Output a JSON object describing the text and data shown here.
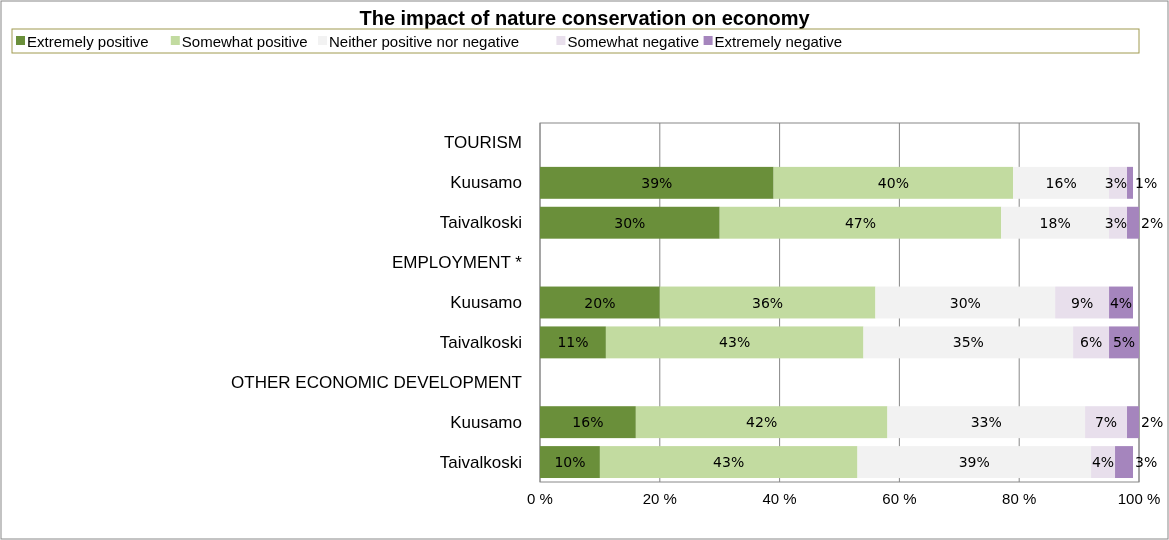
{
  "chart_data": {
    "type": "bar",
    "orientation": "horizontal",
    "stacked": true,
    "title": "The impact of nature conservation on economy",
    "categories": [
      "TOURISM",
      "Kuusamo",
      "Taivalkoski",
      "EMPLOYMENT *",
      "Kuusamo",
      "Taivalkoski",
      "OTHER ECONOMIC DEVELOPMENT",
      "Kuusamo",
      "Taivalkoski"
    ],
    "series": [
      {
        "name": "Extremely positive",
        "color": "#6a8f3a",
        "values": [
          null,
          39,
          30,
          null,
          20,
          11,
          null,
          16,
          10
        ],
        "value_labels": [
          null,
          "39%",
          "30%",
          null,
          "20%",
          "11%",
          null,
          "16%",
          "10%"
        ]
      },
      {
        "name": "Somewhat positive",
        "color": "#c2dba0",
        "values": [
          null,
          40,
          47,
          null,
          36,
          43,
          null,
          42,
          43
        ],
        "value_labels": [
          null,
          "40%",
          "47%",
          null,
          "36%",
          "43%",
          null,
          "42%",
          "43%"
        ]
      },
      {
        "name": "Neither positive nor negative",
        "color": "#f2f2f2",
        "values": [
          null,
          16,
          18,
          null,
          30,
          35,
          null,
          33,
          39
        ],
        "value_labels": [
          null,
          "16%",
          "18%",
          null,
          "30%",
          "35%",
          null,
          "33%",
          "39%"
        ]
      },
      {
        "name": "Somewhat negative",
        "color": "#e8dfec",
        "values": [
          null,
          3,
          3,
          null,
          9,
          6,
          null,
          7,
          4
        ],
        "value_labels": [
          null,
          "3%",
          "3%",
          null,
          "9%",
          "6%",
          null,
          "7%",
          "4%"
        ]
      },
      {
        "name": "Extremely negative",
        "color": "#a585bd",
        "values": [
          null,
          1,
          2,
          null,
          4,
          5,
          null,
          2,
          3
        ],
        "value_labels": [
          null,
          "1%",
          "2%",
          null,
          "4%",
          "5%",
          null,
          "2%",
          "3%"
        ]
      }
    ],
    "xlim": [
      0,
      100
    ],
    "xticks": [
      {
        "value": 0,
        "label": "0 %"
      },
      {
        "value": 20,
        "label": "20 %"
      },
      {
        "value": 40,
        "label": "40 %"
      },
      {
        "value": 60,
        "label": "60 %"
      },
      {
        "value": 80,
        "label": "80 %"
      },
      {
        "value": 100,
        "label": "100 %"
      }
    ],
    "grid": "x",
    "legend": "top"
  }
}
